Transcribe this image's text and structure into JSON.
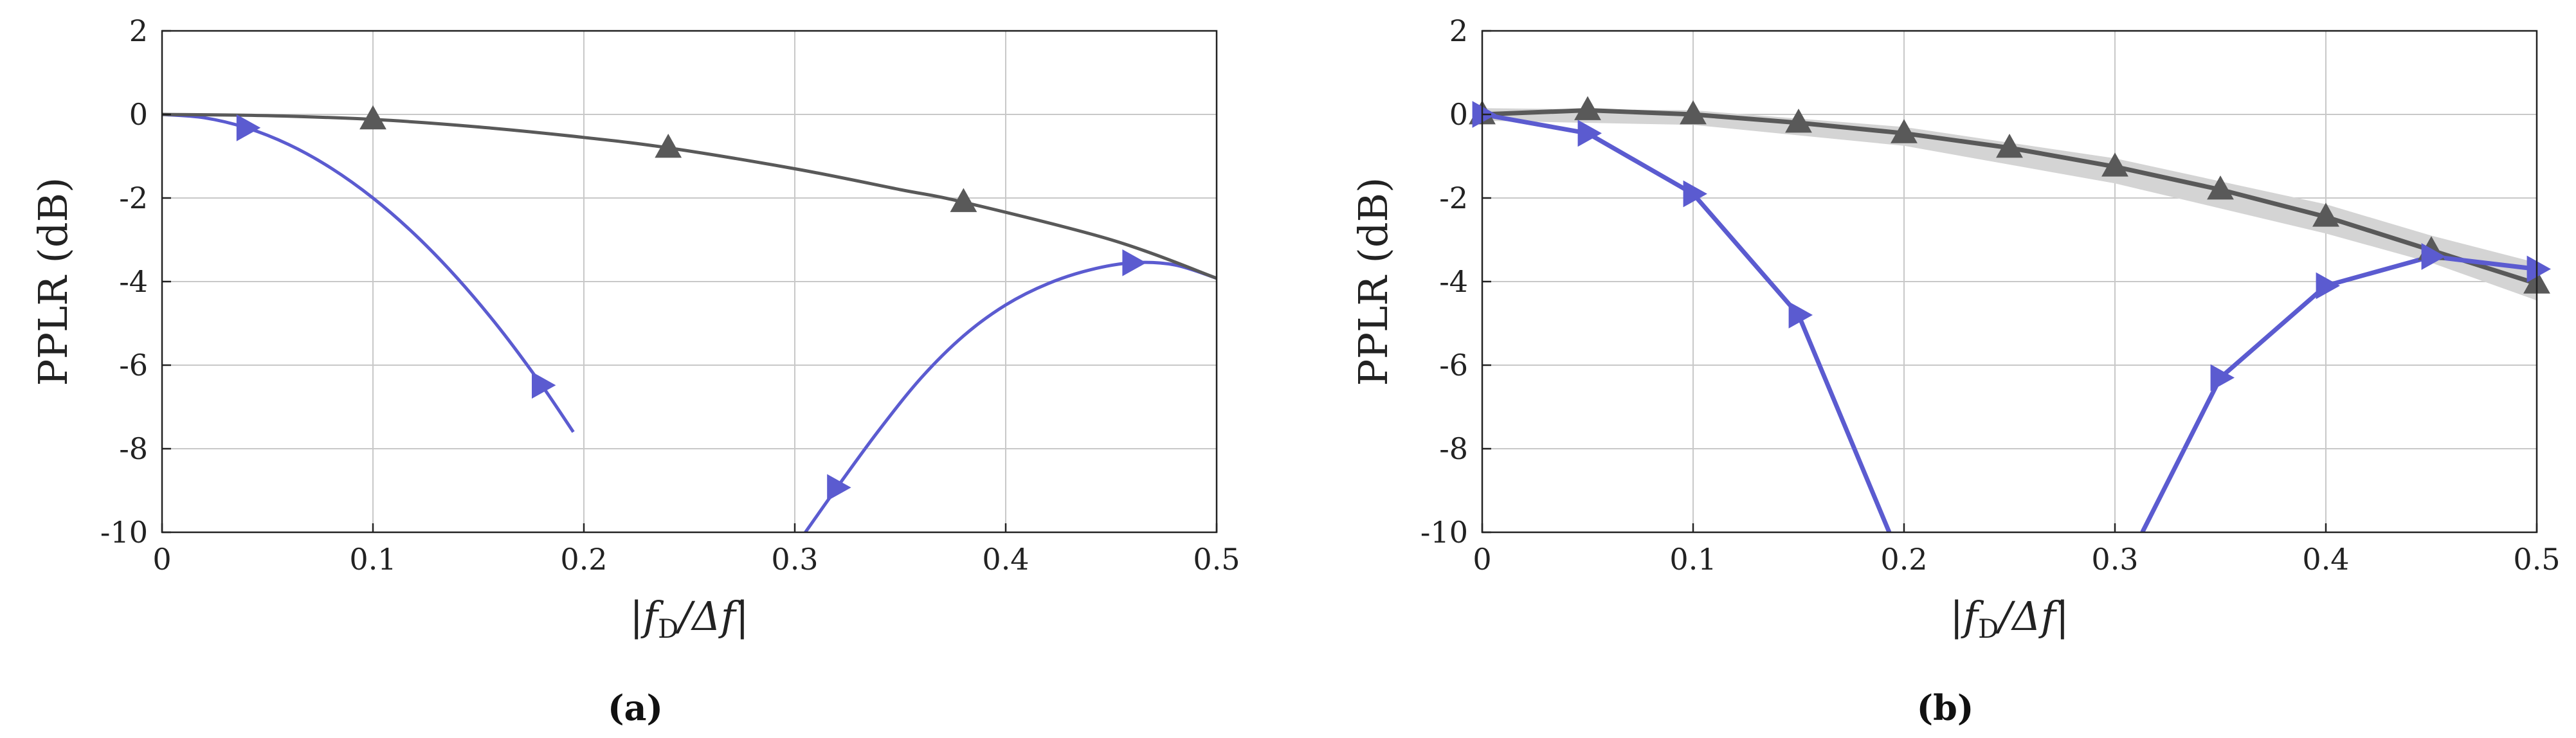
{
  "colors": {
    "blue": "#5b5bd0",
    "gray": "#595959",
    "band": "#d4d4d4",
    "grid": "#c8c8c8"
  },
  "chart_data": [
    {
      "type": "line",
      "caption": "(a)",
      "xlabel_main": "|f",
      "xlabel_sub": "D",
      "xlabel_rest": "/Δf|",
      "ylabel": "PPLR (dB)",
      "xlim": [
        0,
        0.5
      ],
      "ylim": [
        -10,
        2
      ],
      "xticks": [
        0,
        0.1,
        0.2,
        0.3,
        0.4,
        0.5
      ],
      "yticks": [
        2,
        0,
        -2,
        -4,
        -6,
        -8,
        -10
      ],
      "grid": true,
      "series": [
        {
          "color": "blue",
          "marker": "triangle-right",
          "smooth": true,
          "x": [
            0,
            0.02,
            0.04,
            0.06,
            0.08,
            0.1,
            0.12,
            0.14,
            0.16,
            0.18,
            0.195
          ],
          "y": [
            0,
            -0.08,
            -0.32,
            -0.72,
            -1.28,
            -2.0,
            -2.88,
            -3.92,
            -5.12,
            -6.48,
            -7.6
          ],
          "markers_x": [
            0.04,
            0.18
          ],
          "markers_y": [
            -0.32,
            -6.48
          ]
        },
        {
          "color": "blue",
          "marker": "triangle-right",
          "smooth": true,
          "x": [
            0.305,
            0.32,
            0.34,
            0.36,
            0.38,
            0.4,
            0.42,
            0.44,
            0.46,
            0.48,
            0.5
          ],
          "y": [
            -10.0,
            -8.93,
            -7.55,
            -6.3,
            -5.3,
            -4.56,
            -4.05,
            -3.72,
            -3.55,
            -3.6,
            -3.92
          ],
          "markers_x": [
            0.32,
            0.46
          ],
          "markers_y": [
            -8.93,
            -3.55
          ]
        },
        {
          "color": "gray",
          "marker": "triangle-up",
          "smooth": true,
          "x": [
            0,
            0.05,
            0.1,
            0.15,
            0.2,
            0.24,
            0.3,
            0.35,
            0.38,
            0.45,
            0.5
          ],
          "y": [
            0,
            -0.03,
            -0.12,
            -0.3,
            -0.55,
            -0.8,
            -1.3,
            -1.8,
            -2.1,
            -3.0,
            -3.92
          ],
          "markers_x": [
            0.1,
            0.24,
            0.38
          ],
          "markers_y": [
            -0.12,
            -0.8,
            -2.1
          ]
        }
      ]
    },
    {
      "type": "line",
      "caption": "(b)",
      "xlabel_main": "|f",
      "xlabel_sub": "D",
      "xlabel_rest": "/Δf|",
      "ylabel": "PPLR (dB)",
      "xlim": [
        0,
        0.5
      ],
      "ylim": [
        -10,
        2
      ],
      "xticks": [
        0,
        0.1,
        0.2,
        0.3,
        0.4,
        0.5
      ],
      "yticks": [
        2,
        0,
        -2,
        -4,
        -6,
        -8,
        -10
      ],
      "grid": true,
      "band": {
        "x": [
          0,
          0.1,
          0.2,
          0.3,
          0.4,
          0.45,
          0.5
        ],
        "upper": [
          0.15,
          0.1,
          -0.3,
          -1.05,
          -2.15,
          -2.9,
          -3.55
        ],
        "lower": [
          -0.15,
          -0.25,
          -0.75,
          -1.65,
          -2.85,
          -3.55,
          -4.45
        ]
      },
      "series": [
        {
          "color": "gray",
          "marker": "triangle-up",
          "smooth": false,
          "x": [
            0,
            0.05,
            0.1,
            0.15,
            0.2,
            0.25,
            0.3,
            0.35,
            0.4,
            0.45,
            0.5
          ],
          "y": [
            0,
            0.1,
            0.0,
            -0.2,
            -0.45,
            -0.8,
            -1.25,
            -1.8,
            -2.45,
            -3.25,
            -4.05
          ],
          "markers_x": [
            0,
            0.05,
            0.1,
            0.15,
            0.2,
            0.25,
            0.3,
            0.35,
            0.4,
            0.45,
            0.5
          ],
          "markers_y": [
            0,
            0.1,
            0.0,
            -0.2,
            -0.45,
            -0.8,
            -1.25,
            -1.8,
            -2.45,
            -3.25,
            -4.05
          ]
        },
        {
          "color": "blue",
          "marker": "triangle-right",
          "smooth": false,
          "x": [
            0,
            0.05,
            0.1,
            0.15,
            0.193
          ],
          "y": [
            0,
            -0.45,
            -1.9,
            -4.8,
            -10.0
          ],
          "markers_x": [
            0,
            0.05,
            0.1,
            0.15
          ],
          "markers_y": [
            0,
            -0.45,
            -1.9,
            -4.8
          ]
        },
        {
          "color": "blue",
          "marker": "triangle-right",
          "smooth": false,
          "x": [
            0.313,
            0.35,
            0.4,
            0.45,
            0.5
          ],
          "y": [
            -10.0,
            -6.3,
            -4.1,
            -3.4,
            -3.7
          ],
          "markers_x": [
            0.35,
            0.4,
            0.45,
            0.5
          ],
          "markers_y": [
            -6.3,
            -4.1,
            -3.4,
            -3.7
          ]
        }
      ]
    }
  ]
}
